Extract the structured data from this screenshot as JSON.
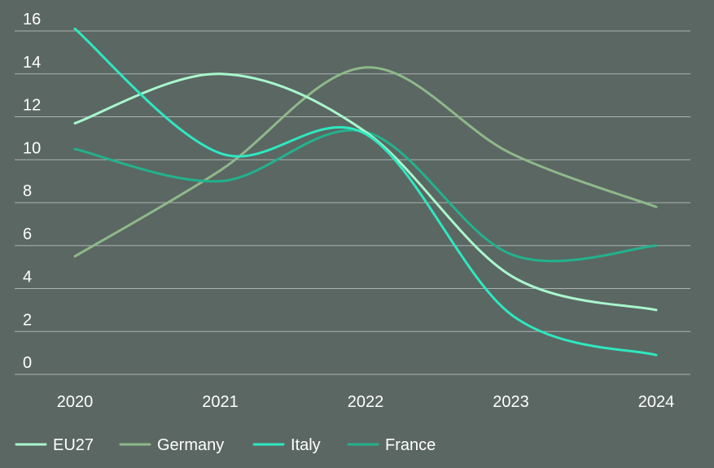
{
  "chart_data": {
    "type": "line",
    "title": "",
    "xlabel": "",
    "ylabel": "",
    "categories": [
      "2020",
      "2021",
      "2022",
      "2023",
      "2024"
    ],
    "y_ticks": [
      0,
      2,
      4,
      6,
      8,
      10,
      12,
      14,
      16
    ],
    "ylim": [
      0,
      16
    ],
    "grid": true,
    "legend_position": "bottom-left",
    "series": [
      {
        "name": "EU27",
        "color": "#a8f7cc",
        "values": [
          11.7,
          14.0,
          11.3,
          4.6,
          3.0
        ]
      },
      {
        "name": "Germany",
        "color": "#8eb88a",
        "values": [
          5.5,
          9.5,
          14.3,
          10.3,
          7.8
        ]
      },
      {
        "name": "Italy",
        "color": "#2ee8c0",
        "values": [
          16.1,
          10.3,
          11.2,
          2.8,
          0.9
        ]
      },
      {
        "name": "France",
        "color": "#22b28d",
        "values": [
          10.5,
          9.0,
          11.3,
          5.6,
          6.0
        ]
      }
    ]
  }
}
